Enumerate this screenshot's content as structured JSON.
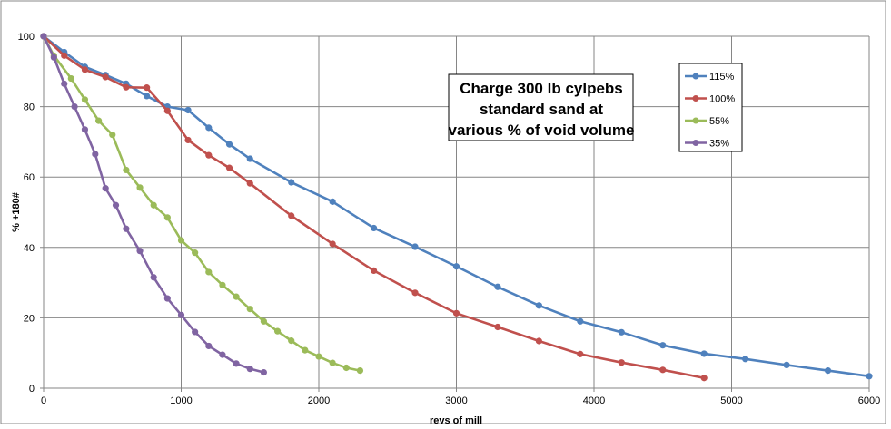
{
  "chart_data": {
    "type": "line",
    "title": "Charge 300 lb cylpebs standard sand at various % of void volume",
    "title_lines": [
      "Charge 300 lb cylpebs",
      "standard sand at",
      "various % of void volume"
    ],
    "xlabel": "revs of mill",
    "ylabel": "% +180#",
    "xlim": [
      0,
      6000
    ],
    "ylim": [
      0,
      100
    ],
    "xticks": [
      0,
      1000,
      2000,
      3000,
      4000,
      5000,
      6000
    ],
    "yticks": [
      0,
      20,
      40,
      60,
      80,
      100
    ],
    "grid": true,
    "legend_position": "top-right",
    "series": [
      {
        "name": "115%",
        "color": "#4f81bd",
        "x": [
          0,
          150,
          300,
          450,
          600,
          750,
          900,
          1050,
          1200,
          1350,
          1500,
          1800,
          2100,
          2400,
          2700,
          3000,
          3300,
          3600,
          3900,
          4200,
          4500,
          4800,
          5100,
          5400,
          5700,
          6000
        ],
        "y": [
          100,
          95.5,
          91.3,
          89,
          86.5,
          83,
          80,
          79,
          74,
          69.3,
          65.2,
          58.5,
          53,
          45.5,
          40.2,
          34.6,
          28.8,
          23.5,
          19,
          15.9,
          12.2,
          9.8,
          8.3,
          6.6,
          5,
          3.4
        ]
      },
      {
        "name": "100%",
        "color": "#c0504d",
        "x": [
          0,
          150,
          300,
          450,
          600,
          750,
          900,
          1050,
          1200,
          1350,
          1500,
          1800,
          2100,
          2400,
          2700,
          3000,
          3300,
          3600,
          3900,
          4200,
          4500,
          4800
        ],
        "y": [
          100,
          94.5,
          90.5,
          88.4,
          85.5,
          85.4,
          78.8,
          70.5,
          66.2,
          62.6,
          58.2,
          49,
          41,
          33.4,
          27.1,
          21.3,
          17.4,
          13.4,
          9.7,
          7.3,
          5.2,
          2.9
        ]
      },
      {
        "name": "55%",
        "color": "#9bbb59",
        "x": [
          0,
          75,
          200,
          300,
          400,
          500,
          600,
          700,
          800,
          900,
          1000,
          1100,
          1200,
          1300,
          1400,
          1500,
          1600,
          1700,
          1800,
          1900,
          2000,
          2100,
          2200,
          2300
        ],
        "y": [
          100,
          94.5,
          88,
          82,
          76,
          72,
          62,
          57,
          52,
          48.5,
          42,
          38.5,
          33,
          29.3,
          26,
          22.5,
          19,
          16.2,
          13.5,
          10.8,
          9,
          7.2,
          5.8,
          5
        ]
      },
      {
        "name": "35%",
        "color": "#8064a2",
        "x": [
          0,
          75,
          150,
          225,
          300,
          375,
          450,
          525,
          600,
          700,
          800,
          900,
          1000,
          1100,
          1200,
          1300,
          1400,
          1500,
          1600
        ],
        "y": [
          100,
          94,
          86.5,
          80,
          73.5,
          66.5,
          56.8,
          52,
          45.3,
          39,
          31.5,
          25.5,
          20.8,
          16,
          12,
          9.5,
          7,
          5.5,
          4.5
        ]
      }
    ]
  }
}
